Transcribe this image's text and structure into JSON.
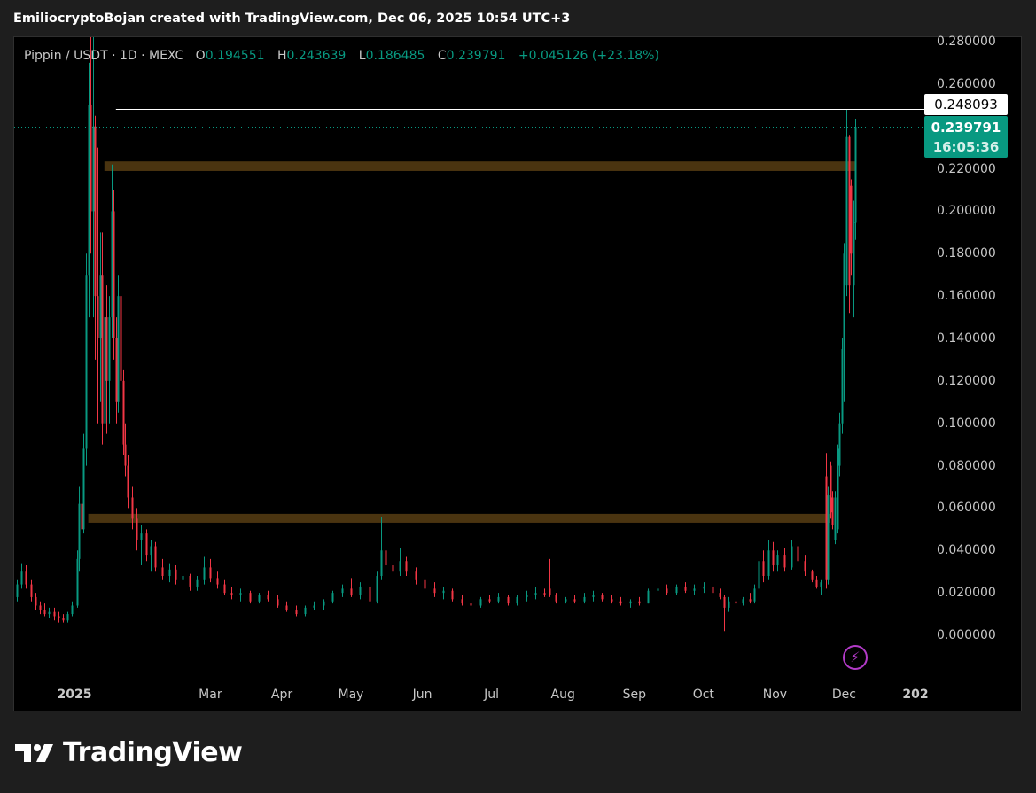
{
  "header": {
    "credit": "EmiliocryptoBojan created with TradingView.com, Dec 06, 2025 10:54 UTC+3"
  },
  "legend": {
    "symbol": "Pippin / USDT · 1D · MEXC",
    "o_label": "O",
    "o": "0.194551",
    "h_label": "H",
    "h": "0.243639",
    "l_label": "L",
    "l": "0.186485",
    "c_label": "C",
    "c": "0.239791",
    "change": "+0.045126 (+23.18%)"
  },
  "price_labels": {
    "high_line": "0.248093",
    "last": "0.239791",
    "countdown": "16:05:36"
  },
  "brand": {
    "name": "TradingView"
  },
  "colors": {
    "up": "#089981",
    "down": "#f23645",
    "zone": "#4a3410",
    "background": "#000000",
    "hline": "#ffffff",
    "alert_icon": "#b23ac7"
  },
  "icons": {
    "alert": "lightning-icon",
    "logo": "tradingview-logo-icon"
  },
  "chart_data": {
    "type": "candlestick",
    "title": "Pippin / USDT · 1D · MEXC",
    "ylim": [
      0,
      0.28
    ],
    "y_ticks": [
      "0.280000",
      "0.260000",
      "0.240000",
      "0.220000",
      "0.200000",
      "0.180000",
      "0.160000",
      "0.140000",
      "0.120000",
      "0.100000",
      "0.080000",
      "0.060000",
      "0.040000",
      "0.020000",
      "0.000000"
    ],
    "x_ticks": [
      {
        "label": "2025",
        "date": "2025-01-01"
      },
      {
        "label": "Mar",
        "date": "2025-03-01"
      },
      {
        "label": "Apr",
        "date": "2025-04-01"
      },
      {
        "label": "May",
        "date": "2025-05-01"
      },
      {
        "label": "Jun",
        "date": "2025-06-01"
      },
      {
        "label": "Jul",
        "date": "2025-07-01"
      },
      {
        "label": "Aug",
        "date": "2025-08-01"
      },
      {
        "label": "Sep",
        "date": "2025-09-01"
      },
      {
        "label": "Oct",
        "date": "2025-10-01"
      },
      {
        "label": "Nov",
        "date": "2025-11-01"
      },
      {
        "label": "Dec",
        "date": "2025-12-01"
      },
      {
        "label": "202",
        "date": "2026-01-01"
      }
    ],
    "zones": [
      {
        "from": "2025-01-14",
        "to": "2025-12-06",
        "low": 0.219,
        "high": 0.2235
      },
      {
        "from": "2025-01-07",
        "to": "2025-11-25",
        "low": 0.0531,
        "high": 0.0573
      }
    ],
    "horizontal_lines": [
      {
        "value": 0.248093,
        "from": "2025-01-19",
        "style": "solid"
      },
      {
        "value": 0.239791,
        "style": "dotted"
      }
    ],
    "candles_ohlc": [
      [
        "2024-12-05",
        0.02,
        0.024,
        0.015,
        0.018
      ],
      [
        "2024-12-07",
        0.018,
        0.026,
        0.016,
        0.024
      ],
      [
        "2024-12-09",
        0.024,
        0.034,
        0.022,
        0.03
      ],
      [
        "2024-12-11",
        0.03,
        0.033,
        0.022,
        0.024
      ],
      [
        "2024-12-13",
        0.024,
        0.026,
        0.016,
        0.018
      ],
      [
        "2024-12-15",
        0.018,
        0.02,
        0.012,
        0.014
      ],
      [
        "2024-12-17",
        0.014,
        0.016,
        0.01,
        0.012
      ],
      [
        "2024-12-19",
        0.012,
        0.015,
        0.009,
        0.01
      ],
      [
        "2024-12-21",
        0.01,
        0.013,
        0.008,
        0.011
      ],
      [
        "2024-12-23",
        0.011,
        0.013,
        0.007,
        0.009
      ],
      [
        "2024-12-25",
        0.009,
        0.011,
        0.006,
        0.008
      ],
      [
        "2024-12-27",
        0.008,
        0.01,
        0.006,
        0.007
      ],
      [
        "2024-12-29",
        0.007,
        0.011,
        0.006,
        0.01
      ],
      [
        "2024-12-31",
        0.01,
        0.016,
        0.009,
        0.014
      ],
      [
        "2025-01-02",
        0.014,
        0.04,
        0.013,
        0.036
      ],
      [
        "2025-01-03",
        0.036,
        0.07,
        0.03,
        0.062
      ],
      [
        "2025-01-04",
        0.062,
        0.09,
        0.045,
        0.05
      ],
      [
        "2025-01-05",
        0.05,
        0.095,
        0.048,
        0.088
      ],
      [
        "2025-01-06",
        0.088,
        0.18,
        0.08,
        0.17
      ],
      [
        "2025-01-07",
        0.17,
        0.27,
        0.15,
        0.25
      ],
      [
        "2025-01-08",
        0.25,
        0.285,
        0.18,
        0.2
      ],
      [
        "2025-01-09",
        0.2,
        0.285,
        0.15,
        0.24
      ],
      [
        "2025-01-10",
        0.24,
        0.245,
        0.13,
        0.16
      ],
      [
        "2025-01-11",
        0.16,
        0.23,
        0.1,
        0.14
      ],
      [
        "2025-01-12",
        0.14,
        0.19,
        0.11,
        0.17
      ],
      [
        "2025-01-13",
        0.17,
        0.19,
        0.09,
        0.1
      ],
      [
        "2025-01-14",
        0.1,
        0.17,
        0.085,
        0.15
      ],
      [
        "2025-01-15",
        0.15,
        0.165,
        0.095,
        0.12
      ],
      [
        "2025-01-16",
        0.12,
        0.16,
        0.1,
        0.15
      ],
      [
        "2025-01-17",
        0.15,
        0.222,
        0.14,
        0.2
      ],
      [
        "2025-01-18",
        0.2,
        0.21,
        0.13,
        0.14
      ],
      [
        "2025-01-19",
        0.14,
        0.15,
        0.1,
        0.11
      ],
      [
        "2025-01-20",
        0.11,
        0.17,
        0.105,
        0.16
      ],
      [
        "2025-01-21",
        0.16,
        0.165,
        0.11,
        0.12
      ],
      [
        "2025-01-22",
        0.12,
        0.125,
        0.085,
        0.09
      ],
      [
        "2025-01-23",
        0.09,
        0.1,
        0.075,
        0.08
      ],
      [
        "2025-01-24",
        0.08,
        0.085,
        0.06,
        0.065
      ],
      [
        "2025-01-26",
        0.065,
        0.07,
        0.05,
        0.055
      ],
      [
        "2025-01-28",
        0.055,
        0.06,
        0.04,
        0.045
      ],
      [
        "2025-01-30",
        0.045,
        0.052,
        0.033,
        0.048
      ],
      [
        "2025-02-01",
        0.048,
        0.05,
        0.035,
        0.038
      ],
      [
        "2025-02-03",
        0.038,
        0.045,
        0.03,
        0.042
      ],
      [
        "2025-02-05",
        0.042,
        0.044,
        0.03,
        0.032
      ],
      [
        "2025-02-08",
        0.032,
        0.036,
        0.026,
        0.028
      ],
      [
        "2025-02-11",
        0.028,
        0.034,
        0.025,
        0.031
      ],
      [
        "2025-02-14",
        0.031,
        0.033,
        0.024,
        0.026
      ],
      [
        "2025-02-17",
        0.026,
        0.03,
        0.022,
        0.028
      ],
      [
        "2025-02-20",
        0.028,
        0.029,
        0.021,
        0.023
      ],
      [
        "2025-02-23",
        0.023,
        0.028,
        0.021,
        0.026
      ],
      [
        "2025-02-26",
        0.026,
        0.037,
        0.024,
        0.032
      ],
      [
        "2025-03-01",
        0.032,
        0.036,
        0.025,
        0.027
      ],
      [
        "2025-03-04",
        0.027,
        0.03,
        0.022,
        0.024
      ],
      [
        "2025-03-07",
        0.024,
        0.026,
        0.019,
        0.02
      ],
      [
        "2025-03-10",
        0.02,
        0.023,
        0.017,
        0.019
      ],
      [
        "2025-03-14",
        0.019,
        0.022,
        0.016,
        0.02
      ],
      [
        "2025-03-18",
        0.02,
        0.021,
        0.015,
        0.016
      ],
      [
        "2025-03-22",
        0.016,
        0.02,
        0.015,
        0.019
      ],
      [
        "2025-03-26",
        0.019,
        0.021,
        0.016,
        0.017
      ],
      [
        "2025-03-30",
        0.017,
        0.019,
        0.013,
        0.014
      ],
      [
        "2025-04-03",
        0.014,
        0.016,
        0.011,
        0.012
      ],
      [
        "2025-04-07",
        0.012,
        0.014,
        0.009,
        0.01
      ],
      [
        "2025-04-11",
        0.01,
        0.014,
        0.009,
        0.013
      ],
      [
        "2025-04-15",
        0.013,
        0.016,
        0.012,
        0.014
      ],
      [
        "2025-04-19",
        0.014,
        0.017,
        0.012,
        0.016
      ],
      [
        "2025-04-23",
        0.016,
        0.021,
        0.015,
        0.02
      ],
      [
        "2025-04-27",
        0.02,
        0.024,
        0.018,
        0.022
      ],
      [
        "2025-05-01",
        0.022,
        0.027,
        0.018,
        0.019
      ],
      [
        "2025-05-05",
        0.019,
        0.025,
        0.017,
        0.023
      ],
      [
        "2025-05-09",
        0.023,
        0.026,
        0.014,
        0.016
      ],
      [
        "2025-05-12",
        0.016,
        0.03,
        0.015,
        0.028
      ],
      [
        "2025-05-14",
        0.028,
        0.056,
        0.026,
        0.04
      ],
      [
        "2025-05-16",
        0.04,
        0.047,
        0.03,
        0.033
      ],
      [
        "2025-05-19",
        0.033,
        0.036,
        0.027,
        0.03
      ],
      [
        "2025-05-22",
        0.03,
        0.041,
        0.028,
        0.035
      ],
      [
        "2025-05-25",
        0.035,
        0.037,
        0.028,
        0.03
      ],
      [
        "2025-05-29",
        0.03,
        0.032,
        0.024,
        0.026
      ],
      [
        "2025-06-02",
        0.026,
        0.028,
        0.02,
        0.022
      ],
      [
        "2025-06-06",
        0.022,
        0.025,
        0.018,
        0.02
      ],
      [
        "2025-06-10",
        0.02,
        0.023,
        0.017,
        0.021
      ],
      [
        "2025-06-14",
        0.021,
        0.022,
        0.016,
        0.017
      ],
      [
        "2025-06-18",
        0.017,
        0.019,
        0.014,
        0.015
      ],
      [
        "2025-06-22",
        0.015,
        0.017,
        0.012,
        0.014
      ],
      [
        "2025-06-26",
        0.014,
        0.018,
        0.013,
        0.017
      ],
      [
        "2025-06-30",
        0.017,
        0.019,
        0.015,
        0.016
      ],
      [
        "2025-07-04",
        0.016,
        0.02,
        0.015,
        0.018
      ],
      [
        "2025-07-08",
        0.018,
        0.019,
        0.014,
        0.015
      ],
      [
        "2025-07-12",
        0.015,
        0.019,
        0.014,
        0.018
      ],
      [
        "2025-07-16",
        0.018,
        0.021,
        0.016,
        0.019
      ],
      [
        "2025-07-20",
        0.019,
        0.023,
        0.017,
        0.02
      ],
      [
        "2025-07-24",
        0.02,
        0.022,
        0.018,
        0.019
      ],
      [
        "2025-07-26",
        0.022,
        0.036,
        0.018,
        0.019
      ],
      [
        "2025-07-29",
        0.019,
        0.02,
        0.015,
        0.016
      ],
      [
        "2025-08-02",
        0.016,
        0.018,
        0.015,
        0.017
      ],
      [
        "2025-08-06",
        0.017,
        0.019,
        0.015,
        0.016
      ],
      [
        "2025-08-10",
        0.016,
        0.02,
        0.015,
        0.018
      ],
      [
        "2025-08-14",
        0.018,
        0.021,
        0.016,
        0.019
      ],
      [
        "2025-08-18",
        0.019,
        0.02,
        0.016,
        0.017
      ],
      [
        "2025-08-22",
        0.017,
        0.019,
        0.015,
        0.016
      ],
      [
        "2025-08-26",
        0.016,
        0.018,
        0.014,
        0.015
      ],
      [
        "2025-08-30",
        0.015,
        0.017,
        0.013,
        0.016
      ],
      [
        "2025-09-03",
        0.016,
        0.018,
        0.014,
        0.015
      ],
      [
        "2025-09-07",
        0.015,
        0.022,
        0.015,
        0.021
      ],
      [
        "2025-09-11",
        0.021,
        0.025,
        0.019,
        0.022
      ],
      [
        "2025-09-15",
        0.022,
        0.024,
        0.019,
        0.02
      ],
      [
        "2025-09-19",
        0.02,
        0.024,
        0.019,
        0.023
      ],
      [
        "2025-09-23",
        0.023,
        0.025,
        0.02,
        0.021
      ],
      [
        "2025-09-27",
        0.021,
        0.024,
        0.019,
        0.022
      ],
      [
        "2025-10-01",
        0.022,
        0.025,
        0.02,
        0.023
      ],
      [
        "2025-10-05",
        0.023,
        0.024,
        0.019,
        0.02
      ],
      [
        "2025-10-08",
        0.02,
        0.022,
        0.017,
        0.018
      ],
      [
        "2025-10-10",
        0.018,
        0.019,
        0.002,
        0.013
      ],
      [
        "2025-10-12",
        0.013,
        0.018,
        0.011,
        0.016
      ],
      [
        "2025-10-15",
        0.016,
        0.018,
        0.014,
        0.015
      ],
      [
        "2025-10-18",
        0.015,
        0.018,
        0.014,
        0.017
      ],
      [
        "2025-10-21",
        0.017,
        0.02,
        0.015,
        0.016
      ],
      [
        "2025-10-23",
        0.016,
        0.024,
        0.015,
        0.022
      ],
      [
        "2025-10-25",
        0.022,
        0.056,
        0.02,
        0.035
      ],
      [
        "2025-10-27",
        0.035,
        0.04,
        0.025,
        0.028
      ],
      [
        "2025-10-29",
        0.028,
        0.045,
        0.026,
        0.04
      ],
      [
        "2025-10-31",
        0.04,
        0.044,
        0.03,
        0.033
      ],
      [
        "2025-11-02",
        0.033,
        0.04,
        0.03,
        0.038
      ],
      [
        "2025-11-05",
        0.038,
        0.041,
        0.03,
        0.032
      ],
      [
        "2025-11-08",
        0.032,
        0.045,
        0.031,
        0.042
      ],
      [
        "2025-11-11",
        0.042,
        0.044,
        0.033,
        0.035
      ],
      [
        "2025-11-14",
        0.035,
        0.038,
        0.028,
        0.03
      ],
      [
        "2025-11-17",
        0.03,
        0.031,
        0.025,
        0.026
      ],
      [
        "2025-11-19",
        0.026,
        0.028,
        0.022,
        0.023
      ],
      [
        "2025-11-21",
        0.023,
        0.026,
        0.019,
        0.025
      ],
      [
        "2025-11-23",
        0.075,
        0.086,
        0.022,
        0.026
      ],
      [
        "2025-11-24",
        0.026,
        0.07,
        0.024,
        0.066
      ],
      [
        "2025-11-25",
        0.08,
        0.082,
        0.055,
        0.058
      ],
      [
        "2025-11-26",
        0.065,
        0.068,
        0.05,
        0.052
      ],
      [
        "2025-11-27",
        0.045,
        0.068,
        0.043,
        0.065
      ],
      [
        "2025-11-28",
        0.05,
        0.09,
        0.048,
        0.088
      ],
      [
        "2025-11-29",
        0.08,
        0.105,
        0.075,
        0.1
      ],
      [
        "2025-11-30",
        0.1,
        0.14,
        0.095,
        0.135
      ],
      [
        "2025-12-01",
        0.135,
        0.185,
        0.11,
        0.18
      ],
      [
        "2025-12-02",
        0.165,
        0.248093,
        0.16,
        0.235
      ],
      [
        "2025-12-03",
        0.235,
        0.236,
        0.152,
        0.165
      ],
      [
        "2025-12-04",
        0.212,
        0.215,
        0.17,
        0.18
      ],
      [
        "2025-12-05",
        0.165,
        0.205,
        0.15,
        0.195
      ],
      [
        "2025-12-06",
        0.194551,
        0.243639,
        0.186485,
        0.239791
      ]
    ]
  }
}
